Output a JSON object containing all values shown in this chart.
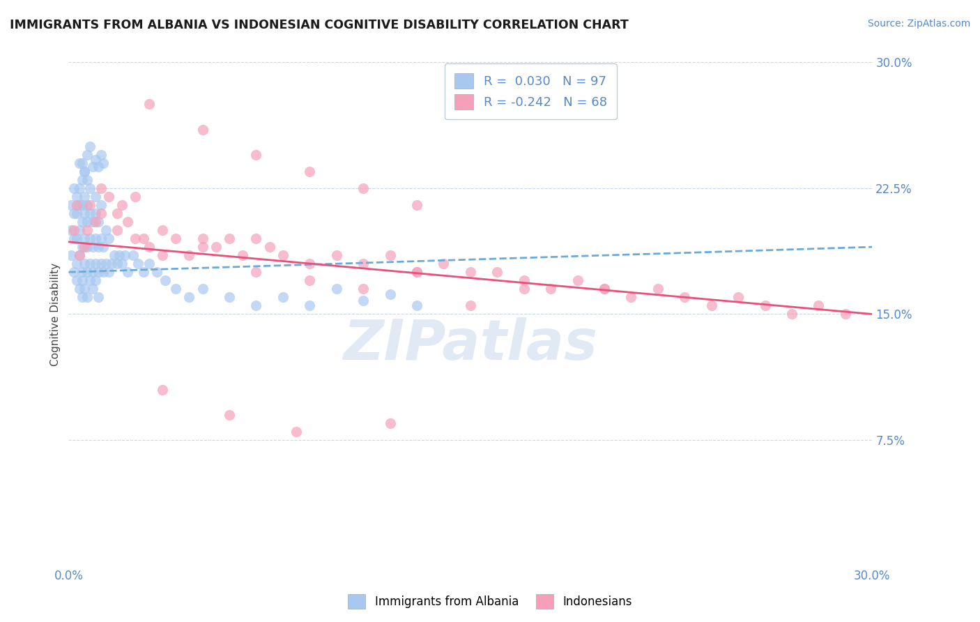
{
  "title": "IMMIGRANTS FROM ALBANIA VS INDONESIAN COGNITIVE DISABILITY CORRELATION CHART",
  "source": "Source: ZipAtlas.com",
  "ylabel": "Cognitive Disability",
  "legend_label1": "Immigrants from Albania",
  "legend_label2": "Indonesians",
  "R1": 0.03,
  "N1": 97,
  "R2": -0.242,
  "N2": 68,
  "xlim": [
    0.0,
    0.3
  ],
  "ylim": [
    0.0,
    0.3
  ],
  "color_albania": "#a8c8f0",
  "color_indonesian": "#f5a0b8",
  "trend_color_albania": "#6aaad8",
  "trend_color_indonesian": "#e8507a",
  "background_color": "#ffffff",
  "watermark": "ZIPatlas",
  "albania_x": [
    0.001,
    0.001,
    0.001,
    0.002,
    0.002,
    0.002,
    0.002,
    0.003,
    0.003,
    0.003,
    0.003,
    0.003,
    0.004,
    0.004,
    0.004,
    0.004,
    0.004,
    0.004,
    0.005,
    0.005,
    0.005,
    0.005,
    0.005,
    0.005,
    0.005,
    0.006,
    0.006,
    0.006,
    0.006,
    0.006,
    0.006,
    0.007,
    0.007,
    0.007,
    0.007,
    0.007,
    0.007,
    0.008,
    0.008,
    0.008,
    0.008,
    0.008,
    0.009,
    0.009,
    0.009,
    0.009,
    0.01,
    0.01,
    0.01,
    0.01,
    0.01,
    0.011,
    0.011,
    0.011,
    0.011,
    0.012,
    0.012,
    0.012,
    0.013,
    0.013,
    0.014,
    0.014,
    0.015,
    0.015,
    0.016,
    0.017,
    0.018,
    0.019,
    0.02,
    0.021,
    0.022,
    0.024,
    0.026,
    0.028,
    0.03,
    0.033,
    0.036,
    0.04,
    0.045,
    0.05,
    0.06,
    0.07,
    0.08,
    0.09,
    0.1,
    0.11,
    0.12,
    0.13,
    0.005,
    0.006,
    0.007,
    0.008,
    0.009,
    0.01,
    0.011,
    0.012,
    0.013
  ],
  "albania_y": [
    0.185,
    0.2,
    0.215,
    0.175,
    0.195,
    0.21,
    0.225,
    0.18,
    0.195,
    0.21,
    0.22,
    0.17,
    0.185,
    0.2,
    0.215,
    0.225,
    0.165,
    0.24,
    0.175,
    0.19,
    0.205,
    0.215,
    0.16,
    0.23,
    0.17,
    0.18,
    0.195,
    0.21,
    0.22,
    0.165,
    0.235,
    0.175,
    0.19,
    0.205,
    0.215,
    0.16,
    0.23,
    0.18,
    0.195,
    0.21,
    0.17,
    0.225,
    0.175,
    0.19,
    0.205,
    0.165,
    0.18,
    0.195,
    0.21,
    0.22,
    0.17,
    0.175,
    0.19,
    0.205,
    0.16,
    0.18,
    0.195,
    0.215,
    0.175,
    0.19,
    0.18,
    0.2,
    0.175,
    0.195,
    0.18,
    0.185,
    0.18,
    0.185,
    0.18,
    0.185,
    0.175,
    0.185,
    0.18,
    0.175,
    0.18,
    0.175,
    0.17,
    0.165,
    0.16,
    0.165,
    0.16,
    0.155,
    0.16,
    0.155,
    0.165,
    0.158,
    0.162,
    0.155,
    0.24,
    0.235,
    0.245,
    0.25,
    0.238,
    0.242,
    0.238,
    0.245,
    0.24
  ],
  "indonesian_x": [
    0.002,
    0.004,
    0.006,
    0.008,
    0.01,
    0.012,
    0.015,
    0.018,
    0.02,
    0.022,
    0.025,
    0.028,
    0.03,
    0.035,
    0.04,
    0.045,
    0.05,
    0.055,
    0.06,
    0.065,
    0.07,
    0.075,
    0.08,
    0.09,
    0.1,
    0.11,
    0.12,
    0.13,
    0.14,
    0.15,
    0.16,
    0.17,
    0.18,
    0.19,
    0.2,
    0.21,
    0.22,
    0.23,
    0.24,
    0.25,
    0.26,
    0.27,
    0.28,
    0.29,
    0.003,
    0.007,
    0.012,
    0.018,
    0.025,
    0.035,
    0.05,
    0.07,
    0.09,
    0.11,
    0.13,
    0.15,
    0.17,
    0.2,
    0.03,
    0.05,
    0.07,
    0.09,
    0.11,
    0.13,
    0.035,
    0.06,
    0.085,
    0.12
  ],
  "indonesian_y": [
    0.2,
    0.185,
    0.19,
    0.215,
    0.205,
    0.225,
    0.22,
    0.21,
    0.215,
    0.205,
    0.22,
    0.195,
    0.19,
    0.2,
    0.195,
    0.185,
    0.195,
    0.19,
    0.195,
    0.185,
    0.195,
    0.19,
    0.185,
    0.18,
    0.185,
    0.18,
    0.185,
    0.175,
    0.18,
    0.175,
    0.175,
    0.17,
    0.165,
    0.17,
    0.165,
    0.16,
    0.165,
    0.16,
    0.155,
    0.16,
    0.155,
    0.15,
    0.155,
    0.15,
    0.215,
    0.2,
    0.21,
    0.2,
    0.195,
    0.185,
    0.19,
    0.175,
    0.17,
    0.165,
    0.175,
    0.155,
    0.165,
    0.165,
    0.275,
    0.26,
    0.245,
    0.235,
    0.225,
    0.215,
    0.105,
    0.09,
    0.08,
    0.085
  ]
}
